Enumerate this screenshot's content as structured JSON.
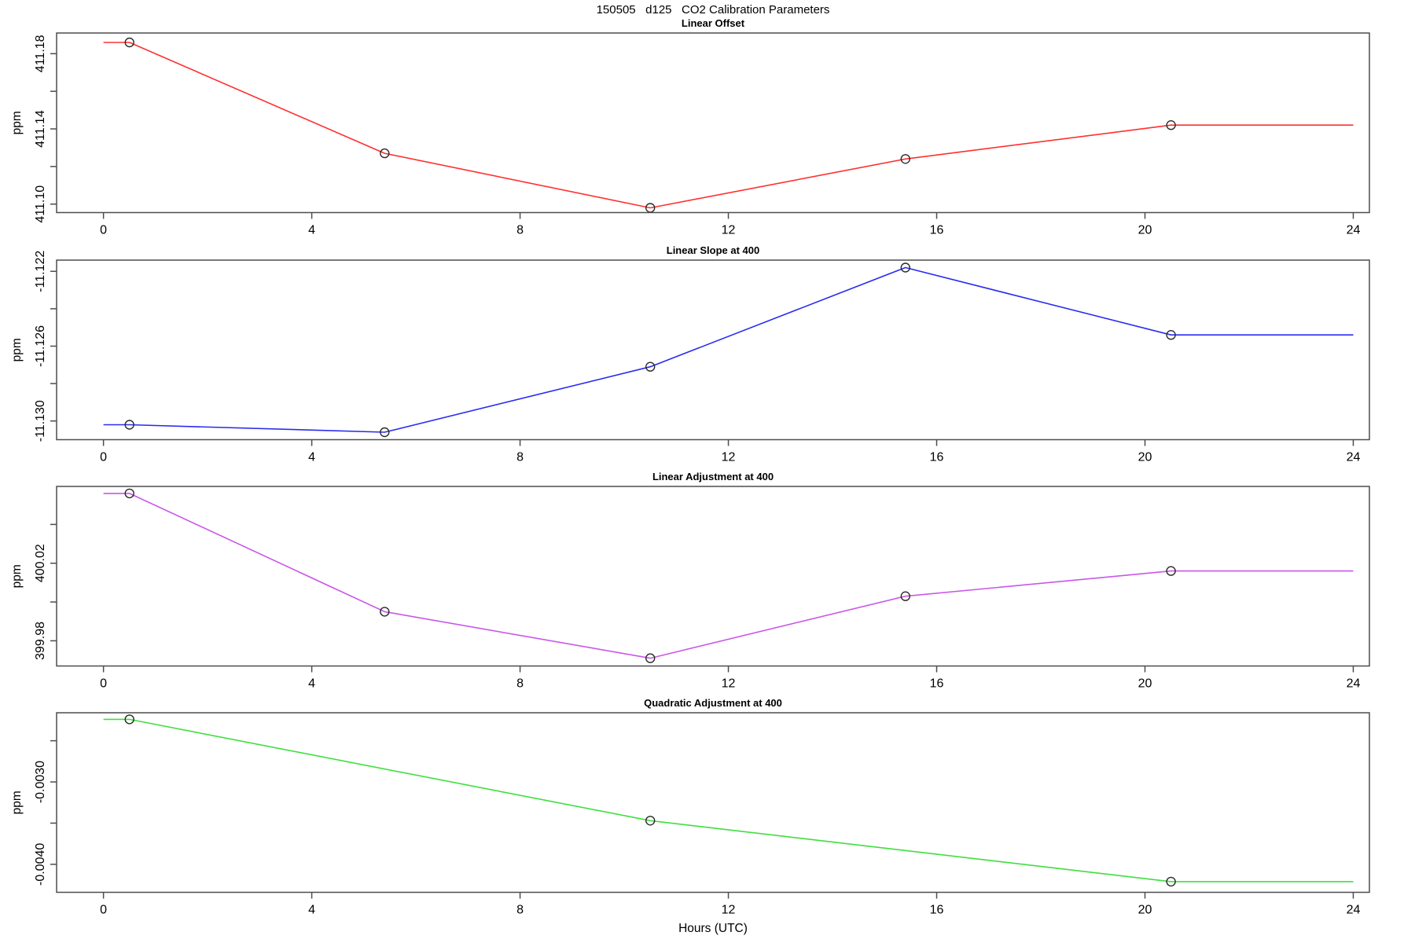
{
  "page": {
    "background": "#ffffff",
    "text_color": "#000000",
    "axis_color": "#4d4d4d",
    "marker_color": "#2a2a2a"
  },
  "chart_data": {
    "type": "line",
    "title": "150505   d125   CO2 Calibration Parameters",
    "xlabel": "Hours (UTC)",
    "x_ticks": [
      0,
      4,
      8,
      12,
      16,
      20,
      24
    ],
    "x_tick_labels": [
      "0",
      "4",
      "8",
      "12",
      "16",
      "20",
      "24"
    ],
    "xlim": [
      -0.9,
      24.31
    ],
    "grid": false,
    "legend": "none",
    "marker": "open-circle",
    "panels": [
      {
        "title": "Linear Offset",
        "ylabel": "ppm",
        "color": "#ff3030",
        "ylim": [
          411.0955,
          411.191
        ],
        "y_ticks": [
          411.1,
          411.12,
          411.14,
          411.16,
          411.18
        ],
        "y_tick_labels": [
          "411.10",
          "",
          "411.14",
          "",
          "411.18"
        ],
        "x": [
          0.5,
          5.4,
          10.5,
          15.4,
          20.5
        ],
        "y": [
          411.186,
          411.127,
          411.098,
          411.124,
          411.142
        ],
        "line_x_range": [
          0,
          24
        ]
      },
      {
        "title": "Linear Slope at 400",
        "ylabel": "ppm",
        "color": "#2b2bf0",
        "ylim": [
          -11.131,
          -11.1214
        ],
        "y_ticks": [
          -11.13,
          -11.128,
          -11.126,
          -11.124,
          -11.122
        ],
        "y_tick_labels": [
          "-11.130",
          "",
          "-11.126",
          "",
          "-11.122"
        ],
        "x": [
          0.5,
          5.4,
          10.5,
          15.4,
          20.5
        ],
        "y": [
          -11.1302,
          -11.1306,
          -11.1271,
          -11.1218,
          -11.1254
        ],
        "line_x_range": [
          0,
          24
        ]
      },
      {
        "title": "Linear Adjustment at 400",
        "ylabel": "ppm",
        "color": "#c957e8",
        "ylim": [
          399.967,
          400.0596
        ],
        "y_ticks": [
          399.98,
          400.0,
          400.02,
          400.04
        ],
        "y_tick_labels": [
          "399.98",
          "",
          "400.02",
          ""
        ],
        "x": [
          0.5,
          5.4,
          10.5,
          15.4,
          20.5
        ],
        "y": [
          400.056,
          399.995,
          399.971,
          400.003,
          400.016
        ],
        "line_x_range": [
          0,
          24
        ]
      },
      {
        "title": "Quadratic Adjustment at 400",
        "ylabel": "ppm",
        "color": "#3fdf3f",
        "ylim": [
          -0.00434,
          -0.00216
        ],
        "y_ticks": [
          -0.004,
          -0.0035,
          -0.003,
          -0.0025
        ],
        "y_tick_labels": [
          "-0.0040",
          "",
          "-0.0030",
          ""
        ],
        "x": [
          0.5,
          10.5,
          20.5
        ],
        "y": [
          -0.00224,
          -0.00347,
          -0.00421
        ],
        "line_x_range": [
          0,
          24
        ]
      }
    ]
  }
}
